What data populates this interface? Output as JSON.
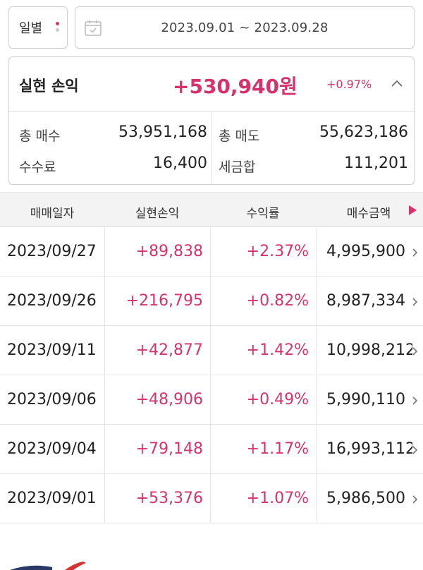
{
  "filter": {
    "period_label": "일별",
    "date_range": "2023.09.01 ~ 2023.09.28",
    "icons": {
      "period": "kebab-dots-icon",
      "date": "calendar-icon"
    }
  },
  "summary": {
    "title": "실현 손익",
    "amount": "+530,940원",
    "rate": "+0.97%",
    "collapse_icon": "chevron-up-icon",
    "total_buy_label": "총 매수",
    "total_buy_value": "53,951,168",
    "total_sell_label": "총 매도",
    "total_sell_value": "55,623,186",
    "fee_label": "수수료",
    "fee_value": "16,400",
    "tax_label": "세금합",
    "tax_value": "111,201"
  },
  "table": {
    "headers": [
      "매매일자",
      "실현손익",
      "수익률",
      "매수금액"
    ],
    "scroll_icon": "triangle-right-icon",
    "rows": [
      {
        "date": "2023/09/27",
        "pnl": "+89,838",
        "rate": "+2.37%",
        "buy": "4,995,900"
      },
      {
        "date": "2023/09/26",
        "pnl": "+216,795",
        "rate": "+0.82%",
        "buy": "8,987,334"
      },
      {
        "date": "2023/09/11",
        "pnl": "+42,877",
        "rate": "+1.42%",
        "buy": "10,998,212"
      },
      {
        "date": "2023/09/06",
        "pnl": "+48,906",
        "rate": "+0.49%",
        "buy": "5,990,110"
      },
      {
        "date": "2023/09/04",
        "pnl": "+79,148",
        "rate": "+1.17%",
        "buy": "16,993,112"
      },
      {
        "date": "2023/09/01",
        "pnl": "+53,376",
        "rate": "+1.07%",
        "buy": "5,986,500"
      }
    ]
  },
  "colors": {
    "accent": "#d6336c",
    "text": "#222222",
    "border": "#cfcfcf",
    "header_bg": "#f3f3f3"
  }
}
